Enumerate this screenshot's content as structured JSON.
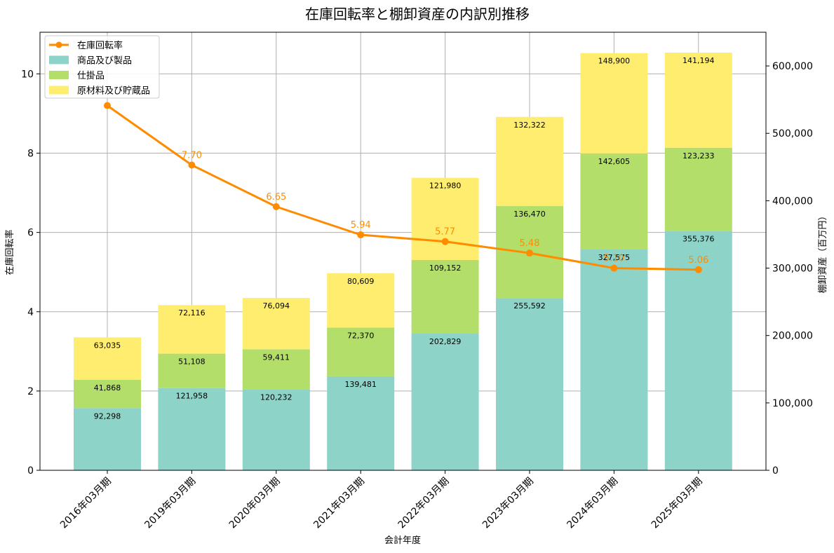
{
  "chart_data": {
    "type": "bar",
    "title": "在庫回転率と棚卸資産の内訳別推移",
    "xlabel": "会計年度",
    "ylabel_left": "在庫回転率",
    "ylabel_right": "棚卸資産（百万円）",
    "categories": [
      "2016年03月期",
      "2019年03月期",
      "2020年03月期",
      "2021年03月期",
      "2022年03月期",
      "2023年03月期",
      "2024年03月期",
      "2025年03月期"
    ],
    "stacked": true,
    "series": [
      {
        "name": "商品及び製品",
        "color": "#8dd3c7",
        "values": [
          92298,
          121958,
          120232,
          139481,
          202829,
          255592,
          327575,
          355376
        ]
      },
      {
        "name": "仕掛品",
        "color": "#b3de69",
        "values": [
          41868,
          51108,
          59411,
          72370,
          109152,
          136470,
          142605,
          123233
        ]
      },
      {
        "name": "原材料及び貯蔵品",
        "color": "#ffed6f",
        "values": [
          63035,
          72116,
          76094,
          80609,
          121980,
          132322,
          148900,
          141194
        ]
      }
    ],
    "segment_labels": [
      [
        "92,298",
        "121,958",
        "120,232",
        "139,481",
        "202,829",
        "255,592",
        "327,575",
        "355,376"
      ],
      [
        "41,868",
        "51,108",
        "59,411",
        "72,370",
        "109,152",
        "136,470",
        "142,605",
        "123,233"
      ],
      [
        "63,035",
        "72,116",
        "76,094",
        "80,609",
        "121,980",
        "132,322",
        "148,900",
        "141,194"
      ]
    ],
    "line_series": {
      "name": "在庫回転率",
      "color": "#ff8c00",
      "values": [
        9.2,
        7.7,
        6.65,
        5.94,
        5.77,
        5.48,
        5.1,
        5.06
      ],
      "labels": [
        "",
        "7.70",
        "6.65",
        "5.94",
        "5.77",
        "5.48",
        "5.10",
        "5.06"
      ]
    },
    "ylim_left": [
      0,
      11.05
    ],
    "yticks_left": [
      0,
      2,
      4,
      6,
      8,
      10
    ],
    "ytick_labels_left": [
      "0",
      "2",
      "4",
      "6",
      "8",
      "10"
    ],
    "ylim_right": [
      0,
      650000
    ],
    "yticks_right": [
      0,
      100000,
      200000,
      300000,
      400000,
      500000,
      600000
    ],
    "ytick_labels_right": [
      "0",
      "100,000",
      "200,000",
      "300,000",
      "400,000",
      "500,000",
      "600,000"
    ],
    "grid": true,
    "legend_position": "top-left"
  }
}
